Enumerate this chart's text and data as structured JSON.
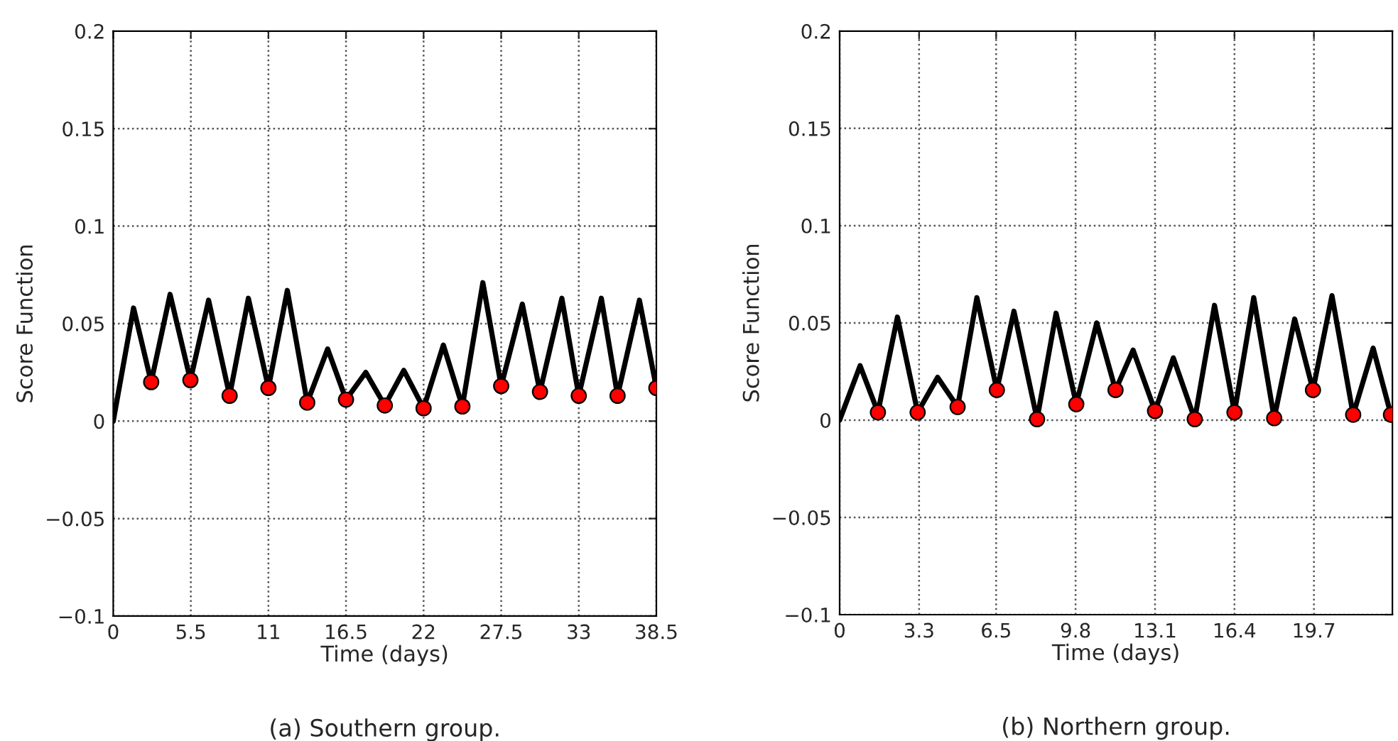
{
  "chart_data": [
    {
      "type": "line",
      "xlabel": "Time (days)",
      "ylabel": "Score Function",
      "annotations": [
        "(a) Southern group."
      ],
      "xlim": [
        0,
        38.5
      ],
      "ylim": [
        -0.1,
        0.2
      ],
      "xticks": [
        0,
        5.5,
        11,
        16.5,
        22,
        27.5,
        33,
        38.5
      ],
      "yticks": [
        -0.1,
        -0.05,
        0,
        0.05,
        0.1,
        0.15,
        0.2
      ],
      "grid": true,
      "series": [
        {
          "color": "#000000",
          "line_style": "solid",
          "x": [
            0,
            1.44,
            2.69,
            4.03,
            5.47,
            6.76,
            8.25,
            9.58,
            11,
            12.34,
            13.75,
            15.2,
            16.5,
            17.9,
            19.25,
            20.6,
            22,
            23.4,
            24.75,
            26.2,
            27.5,
            29.0,
            30.25,
            31.8,
            33,
            34.6,
            35.75,
            37.3,
            38.5
          ],
          "values": [
            0,
            0.058,
            0.02,
            0.065,
            0.021,
            0.062,
            0.013,
            0.063,
            0.017,
            0.067,
            0.0095,
            0.037,
            0.011,
            0.025,
            0.008,
            0.026,
            0.0066,
            0.039,
            0.0075,
            0.071,
            0.018,
            0.06,
            0.015,
            0.063,
            0.013,
            0.063,
            0.013,
            0.062,
            0.017
          ]
        },
        {
          "type": "scatter",
          "color": "#ff0000",
          "marker": "circle",
          "x": [
            2.69,
            5.47,
            8.25,
            11,
            13.75,
            16.5,
            19.25,
            22,
            24.75,
            27.5,
            30.25,
            33,
            35.75,
            38.5
          ],
          "values": [
            0.02,
            0.021,
            0.013,
            0.017,
            0.0095,
            0.011,
            0.008,
            0.0066,
            0.0075,
            0.018,
            0.015,
            0.013,
            0.013,
            0.017
          ]
        }
      ]
    },
    {
      "type": "line",
      "xlabel": "Time (days)",
      "ylabel": "Score Function",
      "annotations": [
        "(b) Northern group."
      ],
      "xlim": [
        0,
        22.96
      ],
      "ylim": [
        -0.1,
        0.2
      ],
      "xticks": [
        0,
        3.3,
        6.5,
        9.8,
        13.1,
        16.4,
        19.7
      ],
      "yticks": [
        -0.1,
        -0.05,
        0,
        0.05,
        0.1,
        0.15,
        0.2
      ],
      "grid": true,
      "series": [
        {
          "color": "#000000",
          "line_style": "solid",
          "x": [
            0,
            0.85,
            1.59,
            2.4,
            3.24,
            4.07,
            4.9,
            5.7,
            6.53,
            7.24,
            8.2,
            8.99,
            9.83,
            10.68,
            11.46,
            12.19,
            13.1,
            13.86,
            14.75,
            15.57,
            16.4,
            17.2,
            18.05,
            18.9,
            19.66,
            20.45,
            21.33,
            22.16,
            22.9
          ],
          "values": [
            0,
            0.028,
            0.004,
            0.053,
            0.004,
            0.022,
            0.0068,
            0.063,
            0.0155,
            0.056,
            0.0005,
            0.055,
            0.0082,
            0.05,
            0.0155,
            0.036,
            0.0047,
            0.032,
            0.0005,
            0.059,
            0.004,
            0.063,
            0.001,
            0.052,
            0.0155,
            0.064,
            0.0028,
            0.037,
            0.0028
          ]
        },
        {
          "type": "scatter",
          "color": "#ff0000",
          "marker": "circle",
          "x": [
            1.59,
            3.24,
            4.9,
            6.53,
            8.2,
            9.83,
            11.46,
            13.1,
            14.75,
            16.4,
            18.05,
            19.66,
            21.33,
            22.9
          ],
          "values": [
            0.004,
            0.004,
            0.0068,
            0.0155,
            0.0005,
            0.0082,
            0.0155,
            0.0047,
            0.0005,
            0.004,
            0.001,
            0.0155,
            0.0028,
            0.0028
          ]
        }
      ]
    }
  ]
}
